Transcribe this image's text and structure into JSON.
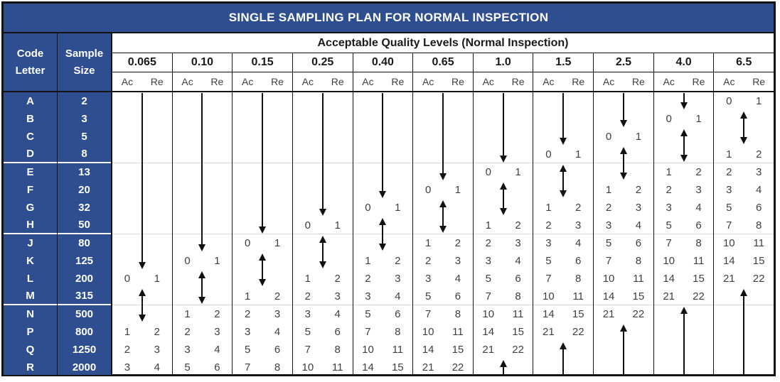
{
  "title": "SINGLE SAMPLING PLAN FOR NORMAL INSPECTION",
  "header": {
    "code_letter_line1": "Code",
    "code_letter_line2": "Letter",
    "sample_size_line1": "Sample",
    "sample_size_line2": "Size",
    "aql_banner": "Acceptable Quality Levels (Normal Inspection)",
    "ac_label": "Ac",
    "re_label": "Re"
  },
  "rows": [
    {
      "code": "A",
      "sample_size": "2"
    },
    {
      "code": "B",
      "sample_size": "3"
    },
    {
      "code": "C",
      "sample_size": "5"
    },
    {
      "code": "D",
      "sample_size": "8"
    },
    {
      "code": "E",
      "sample_size": "13"
    },
    {
      "code": "F",
      "sample_size": "20"
    },
    {
      "code": "G",
      "sample_size": "32"
    },
    {
      "code": "H",
      "sample_size": "50"
    },
    {
      "code": "J",
      "sample_size": "80"
    },
    {
      "code": "K",
      "sample_size": "125"
    },
    {
      "code": "L",
      "sample_size": "200"
    },
    {
      "code": "M",
      "sample_size": "315"
    },
    {
      "code": "N",
      "sample_size": "500"
    },
    {
      "code": "P",
      "sample_size": "800"
    },
    {
      "code": "Q",
      "sample_size": "1250"
    },
    {
      "code": "R",
      "sample_size": "2000"
    }
  ],
  "group_end_rows": [
    "D",
    "H",
    "M"
  ],
  "columns": [
    {
      "aql": "0.065",
      "plans": {
        "L": [
          "0",
          "1"
        ],
        "P": [
          "1",
          "2"
        ],
        "Q": [
          "2",
          "3"
        ],
        "R": [
          "3",
          "4"
        ]
      },
      "arrows": [
        {
          "type": "down",
          "from": "A",
          "to": "K"
        },
        {
          "type": "double",
          "from": "M",
          "to": "N"
        }
      ]
    },
    {
      "aql": "0.10",
      "plans": {
        "K": [
          "0",
          "1"
        ],
        "N": [
          "1",
          "2"
        ],
        "P": [
          "2",
          "3"
        ],
        "Q": [
          "3",
          "4"
        ],
        "R": [
          "5",
          "6"
        ]
      },
      "arrows": [
        {
          "type": "down",
          "from": "A",
          "to": "J"
        },
        {
          "type": "double",
          "from": "L",
          "to": "M"
        }
      ]
    },
    {
      "aql": "0.15",
      "plans": {
        "J": [
          "0",
          "1"
        ],
        "M": [
          "1",
          "2"
        ],
        "N": [
          "2",
          "3"
        ],
        "P": [
          "3",
          "4"
        ],
        "Q": [
          "5",
          "6"
        ],
        "R": [
          "7",
          "8"
        ]
      },
      "arrows": [
        {
          "type": "down",
          "from": "A",
          "to": "H"
        },
        {
          "type": "double",
          "from": "K",
          "to": "L"
        }
      ]
    },
    {
      "aql": "0.25",
      "plans": {
        "H": [
          "0",
          "1"
        ],
        "L": [
          "1",
          "2"
        ],
        "M": [
          "2",
          "3"
        ],
        "N": [
          "3",
          "4"
        ],
        "P": [
          "5",
          "6"
        ],
        "Q": [
          "7",
          "8"
        ],
        "R": [
          "10",
          "11"
        ]
      },
      "arrows": [
        {
          "type": "down",
          "from": "A",
          "to": "G"
        },
        {
          "type": "double",
          "from": "J",
          "to": "K"
        }
      ]
    },
    {
      "aql": "0.40",
      "plans": {
        "G": [
          "0",
          "1"
        ],
        "K": [
          "1",
          "2"
        ],
        "L": [
          "2",
          "3"
        ],
        "M": [
          "3",
          "4"
        ],
        "N": [
          "5",
          "6"
        ],
        "P": [
          "7",
          "8"
        ],
        "Q": [
          "10",
          "11"
        ],
        "R": [
          "14",
          "15"
        ]
      },
      "arrows": [
        {
          "type": "down",
          "from": "A",
          "to": "F"
        },
        {
          "type": "double",
          "from": "H",
          "to": "J"
        }
      ]
    },
    {
      "aql": "0.65",
      "plans": {
        "F": [
          "0",
          "1"
        ],
        "J": [
          "1",
          "2"
        ],
        "K": [
          "2",
          "3"
        ],
        "L": [
          "3",
          "4"
        ],
        "M": [
          "5",
          "6"
        ],
        "N": [
          "7",
          "8"
        ],
        "P": [
          "10",
          "11"
        ],
        "Q": [
          "14",
          "15"
        ],
        "R": [
          "21",
          "22"
        ]
      },
      "arrows": [
        {
          "type": "down",
          "from": "A",
          "to": "E"
        },
        {
          "type": "double",
          "from": "G",
          "to": "H"
        }
      ]
    },
    {
      "aql": "1.0",
      "plans": {
        "E": [
          "0",
          "1"
        ],
        "H": [
          "1",
          "2"
        ],
        "J": [
          "2",
          "3"
        ],
        "K": [
          "3",
          "4"
        ],
        "L": [
          "5",
          "6"
        ],
        "M": [
          "7",
          "8"
        ],
        "N": [
          "10",
          "11"
        ],
        "P": [
          "14",
          "15"
        ],
        "Q": [
          "21",
          "22"
        ]
      },
      "arrows": [
        {
          "type": "down",
          "from": "A",
          "to": "D"
        },
        {
          "type": "double",
          "from": "F",
          "to": "G"
        },
        {
          "type": "up",
          "from": "R",
          "to": "R"
        }
      ]
    },
    {
      "aql": "1.5",
      "plans": {
        "D": [
          "0",
          "1"
        ],
        "G": [
          "1",
          "2"
        ],
        "H": [
          "2",
          "3"
        ],
        "J": [
          "3",
          "4"
        ],
        "K": [
          "5",
          "6"
        ],
        "L": [
          "7",
          "8"
        ],
        "M": [
          "10",
          "11"
        ],
        "N": [
          "14",
          "15"
        ],
        "P": [
          "21",
          "22"
        ]
      },
      "arrows": [
        {
          "type": "down",
          "from": "A",
          "to": "C"
        },
        {
          "type": "double",
          "from": "E",
          "to": "F"
        },
        {
          "type": "up",
          "from": "Q",
          "to": "R"
        }
      ]
    },
    {
      "aql": "2.5",
      "plans": {
        "C": [
          "0",
          "1"
        ],
        "F": [
          "1",
          "2"
        ],
        "G": [
          "2",
          "3"
        ],
        "H": [
          "3",
          "4"
        ],
        "J": [
          "5",
          "6"
        ],
        "K": [
          "7",
          "8"
        ],
        "L": [
          "10",
          "11"
        ],
        "M": [
          "14",
          "15"
        ],
        "N": [
          "21",
          "22"
        ]
      },
      "arrows": [
        {
          "type": "down",
          "from": "A",
          "to": "B"
        },
        {
          "type": "double",
          "from": "D",
          "to": "E"
        },
        {
          "type": "up",
          "from": "P",
          "to": "R"
        }
      ]
    },
    {
      "aql": "4.0",
      "plans": {
        "B": [
          "0",
          "1"
        ],
        "E": [
          "1",
          "2"
        ],
        "F": [
          "2",
          "3"
        ],
        "G": [
          "3",
          "4"
        ],
        "H": [
          "5",
          "6"
        ],
        "J": [
          "7",
          "8"
        ],
        "K": [
          "10",
          "11"
        ],
        "L": [
          "14",
          "15"
        ],
        "M": [
          "21",
          "22"
        ]
      },
      "arrows": [
        {
          "type": "down",
          "from": "A",
          "to": "A"
        },
        {
          "type": "double",
          "from": "C",
          "to": "D"
        },
        {
          "type": "up",
          "from": "N",
          "to": "R"
        }
      ]
    },
    {
      "aql": "6.5",
      "plans": {
        "A": [
          "0",
          "1"
        ],
        "D": [
          "1",
          "2"
        ],
        "E": [
          "2",
          "3"
        ],
        "F": [
          "3",
          "4"
        ],
        "G": [
          "5",
          "6"
        ],
        "H": [
          "7",
          "8"
        ],
        "J": [
          "10",
          "11"
        ],
        "K": [
          "14",
          "15"
        ],
        "L": [
          "21",
          "22"
        ]
      },
      "arrows": [
        {
          "type": "double",
          "from": "B",
          "to": "C"
        },
        {
          "type": "up",
          "from": "M",
          "to": "R"
        }
      ]
    }
  ],
  "colors": {
    "header_blue": "#2e4e8f",
    "border_black": "#141414",
    "cell_text": "#3f3f3f",
    "arrow_black": "#111111",
    "group_separator": "#d8d8d8"
  }
}
